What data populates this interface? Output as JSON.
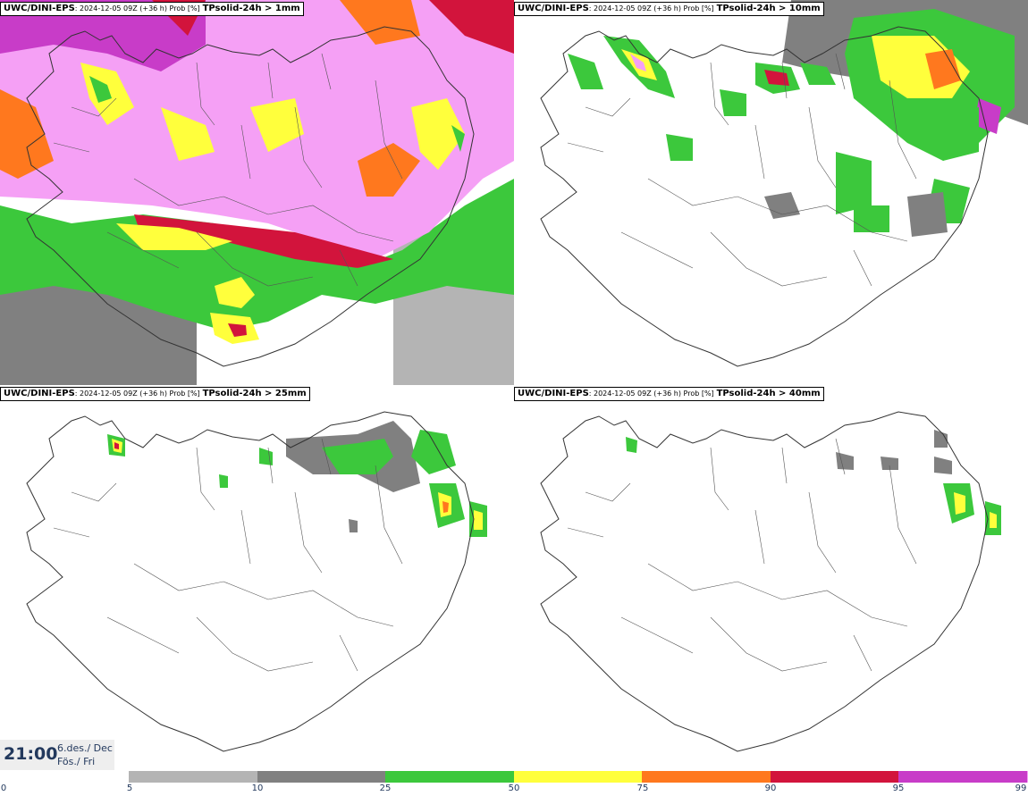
{
  "panels": [
    {
      "model": "UWC/DINI-EPS",
      "run": ": 2024-12-05 09Z (+36 h) Prob [%]",
      "variable": "TPsolid-24h > 1mm"
    },
    {
      "model": "UWC/DINI-EPS",
      "run": ": 2024-12-05 09Z (+36 h) Prob [%]",
      "variable": "TPsolid-24h > 10mm"
    },
    {
      "model": "UWC/DINI-EPS",
      "run": ": 2024-12-05 09Z (+36 h) Prob [%]",
      "variable": "TPsolid-24h > 25mm"
    },
    {
      "model": "UWC/DINI-EPS",
      "run": ": 2024-12-05 09Z (+36 h) Prob [%]",
      "variable": "TPsolid-24h > 40mm"
    }
  ],
  "valid_time": {
    "time": "21:00",
    "date_is": "6.des./ Dec",
    "day": "Fös./ Fri"
  },
  "colorbar": {
    "ticks": [
      "0",
      "5",
      "10",
      "25",
      "50",
      "75",
      "90",
      "95",
      "99"
    ],
    "colors": [
      "#b4b4b4",
      "#808080",
      "#3cc83c",
      "#ffff3c",
      "#ff781e",
      "#d2143c",
      "#c83cc8",
      "#f5a0f5"
    ]
  }
}
